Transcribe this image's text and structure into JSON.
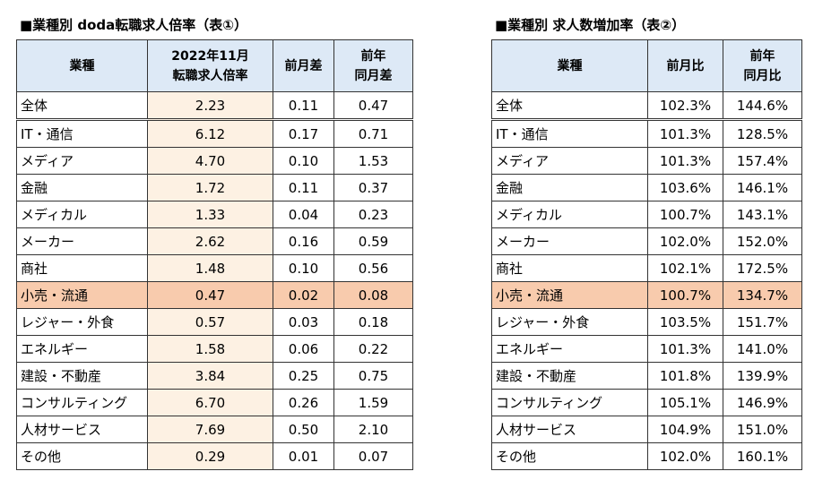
{
  "tables": [
    {
      "title": "■業種別 doda転職求人倍率（表①）",
      "header": [
        [
          "業種"
        ],
        [
          "2022年11月",
          "転職求人倍率"
        ],
        [
          "前月差"
        ],
        [
          "前年",
          "同月差"
        ]
      ],
      "rows": [
        [
          "全体",
          "2.23",
          "0.11",
          "0.47"
        ],
        [
          "IT・通信",
          "6.12",
          "0.17",
          "0.71"
        ],
        [
          "メディア",
          "4.70",
          "0.10",
          "1.53"
        ],
        [
          "金融",
          "1.72",
          "0.11",
          "0.37"
        ],
        [
          "メディカル",
          "1.33",
          "0.04",
          "0.23"
        ],
        [
          "メーカー",
          "2.62",
          "0.16",
          "0.59"
        ],
        [
          "商社",
          "1.48",
          "0.10",
          "0.56"
        ],
        [
          "小売・流通",
          "0.47",
          "0.02",
          "0.08"
        ],
        [
          "レジャー・外食",
          "0.57",
          "0.03",
          "0.18"
        ],
        [
          "エネルギー",
          "1.58",
          "0.06",
          "0.22"
        ],
        [
          "建設・不動産",
          "3.84",
          "0.25",
          "0.75"
        ],
        [
          "コンサルティング",
          "6.70",
          "0.26",
          "1.59"
        ],
        [
          "人材サービス",
          "7.69",
          "0.50",
          "2.10"
        ],
        [
          "その他",
          "0.29",
          "0.01",
          "0.07"
        ]
      ]
    },
    {
      "title": "■業種別 求人数増加率（表②）",
      "header": [
        [
          "業種"
        ],
        [
          "前月比"
        ],
        [
          "前年",
          "同月比"
        ]
      ],
      "rows": [
        [
          "全体",
          "102.3%",
          "144.6%"
        ],
        [
          "IT・通信",
          "101.3%",
          "128.5%"
        ],
        [
          "メディア",
          "101.3%",
          "157.4%"
        ],
        [
          "金融",
          "103.6%",
          "146.1%"
        ],
        [
          "メディカル",
          "100.7%",
          "143.1%"
        ],
        [
          "メーカー",
          "102.0%",
          "152.0%"
        ],
        [
          "商社",
          "102.1%",
          "172.5%"
        ],
        [
          "小売・流通",
          "100.7%",
          "134.7%"
        ],
        [
          "レジャー・外食",
          "103.5%",
          "151.7%"
        ],
        [
          "エネルギー",
          "101.3%",
          "141.0%"
        ],
        [
          "建設・不動産",
          "101.8%",
          "139.9%"
        ],
        [
          "コンサルティング",
          "105.1%",
          "146.9%"
        ],
        [
          "人材サービス",
          "104.9%",
          "151.0%"
        ],
        [
          "その他",
          "102.0%",
          "160.1%"
        ]
      ]
    }
  ]
}
